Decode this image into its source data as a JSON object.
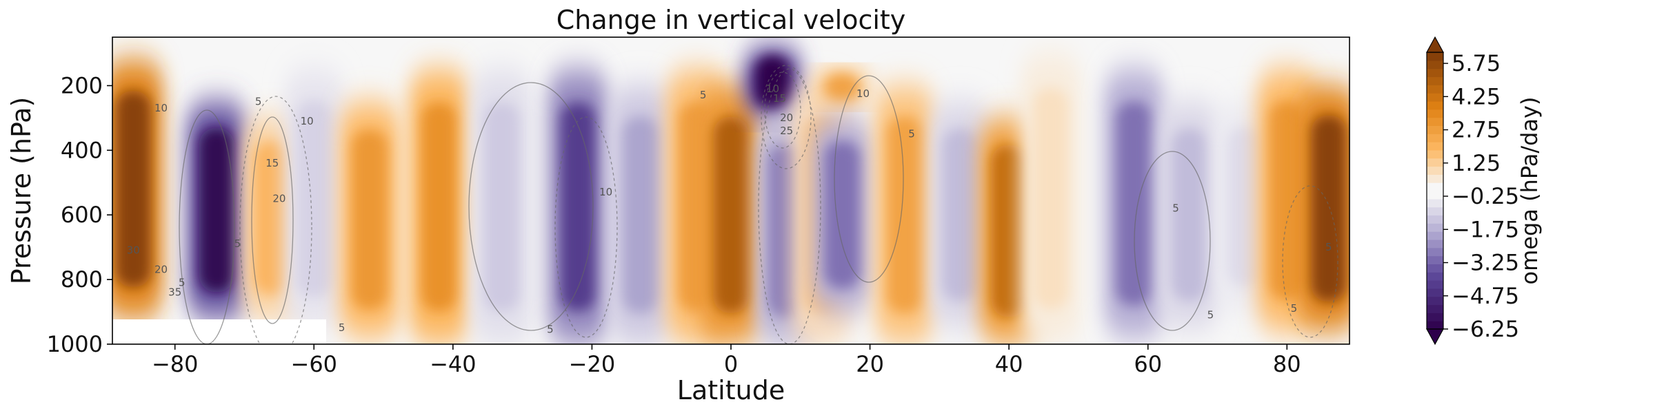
{
  "chart_data": {
    "type": "heatmap",
    "title": "Change in vertical velocity",
    "xlabel": "Latitude",
    "ylabel": "Pressure (hPa)",
    "xlim": [
      -89,
      89
    ],
    "ylim": [
      1000,
      50
    ],
    "x_ticks": [
      -80,
      -60,
      -40,
      -20,
      0,
      20,
      40,
      60,
      80
    ],
    "x_tick_labels": [
      "−80",
      "−60",
      "−40",
      "−20",
      "0",
      "20",
      "40",
      "60",
      "80"
    ],
    "y_ticks": [
      200,
      400,
      600,
      800,
      1000
    ],
    "y_tick_labels": [
      "200",
      "400",
      "600",
      "800",
      "1000"
    ],
    "colorbar": {
      "label": "omega (hPa/day)",
      "colormap": "PuOr_r",
      "vmin": -6.25,
      "vmax": 6.25,
      "extend": "both",
      "ticks": [
        -6.25,
        -4.75,
        -3.25,
        -1.75,
        -0.25,
        1.25,
        2.75,
        4.25,
        5.75
      ],
      "tick_labels": [
        "−6.25",
        "−4.75",
        "−3.25",
        "−1.75",
        "−0.25",
        "1.25",
        "2.75",
        "4.25",
        "5.75"
      ]
    },
    "field_bands": [
      {
        "lat": -86,
        "value": 6.0,
        "p_top": 120,
        "p_bot": 920
      },
      {
        "lat": -74,
        "value": -6.0,
        "p_top": 250,
        "p_bot": 920
      },
      {
        "lat": -66,
        "value": 2.0,
        "p_top": 300,
        "p_bot": 920
      },
      {
        "lat": -60,
        "value": -1.0,
        "p_top": 150,
        "p_bot": 950
      },
      {
        "lat": -52,
        "value": 3.0,
        "p_top": 250,
        "p_bot": 980
      },
      {
        "lat": -42,
        "value": 3.2,
        "p_top": 150,
        "p_bot": 1000
      },
      {
        "lat": -33,
        "value": -1.2,
        "p_top": 150,
        "p_bot": 1000
      },
      {
        "lat": -22,
        "value": -4.2,
        "p_top": 150,
        "p_bot": 1000
      },
      {
        "lat": -13,
        "value": -2.0,
        "p_top": 200,
        "p_bot": 1000
      },
      {
        "lat": -5,
        "value": 2.8,
        "p_top": 150,
        "p_bot": 1000
      },
      {
        "lat": 0,
        "value": 5.0,
        "p_top": 200,
        "p_bot": 1000
      },
      {
        "lat": 6,
        "value": -6.25,
        "p_top": 80,
        "p_bot": 300
      },
      {
        "lat": 8,
        "value": -2.8,
        "p_top": 300,
        "p_bot": 1000
      },
      {
        "lat": 13,
        "value": 1.5,
        "p_top": 200,
        "p_bot": 1000
      },
      {
        "lat": 16,
        "value": 2.6,
        "p_top": 150,
        "p_bot": 260
      },
      {
        "lat": 16,
        "value": -3.0,
        "p_top": 300,
        "p_bot": 900
      },
      {
        "lat": 25,
        "value": 2.6,
        "p_top": 200,
        "p_bot": 1000
      },
      {
        "lat": 33,
        "value": -1.5,
        "p_top": 250,
        "p_bot": 950
      },
      {
        "lat": 40,
        "value": 4.5,
        "p_top": 300,
        "p_bot": 1000
      },
      {
        "lat": 46,
        "value": 0.8,
        "p_top": 100,
        "p_bot": 1000
      },
      {
        "lat": 58,
        "value": -3.0,
        "p_top": 150,
        "p_bot": 980
      },
      {
        "lat": 66,
        "value": -1.5,
        "p_top": 250,
        "p_bot": 950
      },
      {
        "lat": 74,
        "value": -0.8,
        "p_top": 250,
        "p_bot": 900
      },
      {
        "lat": 80,
        "value": 3.0,
        "p_top": 150,
        "p_bot": 960
      },
      {
        "lat": 86,
        "value": 6.0,
        "p_top": 200,
        "p_bot": 960
      }
    ],
    "contour_labels": [
      {
        "lat": -82,
        "p": 280,
        "text": "10"
      },
      {
        "lat": -71,
        "p": 700,
        "text": "5"
      },
      {
        "lat": -68,
        "p": 260,
        "text": "5"
      },
      {
        "lat": -61,
        "p": 320,
        "text": "10"
      },
      {
        "lat": -66,
        "p": 450,
        "text": "15"
      },
      {
        "lat": -65,
        "p": 560,
        "text": "20"
      },
      {
        "lat": -86,
        "p": 720,
        "text": "30"
      },
      {
        "lat": -82,
        "p": 780,
        "text": "20"
      },
      {
        "lat": -80,
        "p": 850,
        "text": "35"
      },
      {
        "lat": -79,
        "p": 820,
        "text": "5"
      },
      {
        "lat": -56,
        "p": 960,
        "text": "5"
      },
      {
        "lat": -26,
        "p": 965,
        "text": "5"
      },
      {
        "lat": -18,
        "p": 540,
        "text": "10"
      },
      {
        "lat": -4,
        "p": 240,
        "text": "5"
      },
      {
        "lat": 6,
        "p": 220,
        "text": "10"
      },
      {
        "lat": 7,
        "p": 250,
        "text": "15"
      },
      {
        "lat": 8,
        "p": 310,
        "text": "20"
      },
      {
        "lat": 8,
        "p": 350,
        "text": "25"
      },
      {
        "lat": 19,
        "p": 235,
        "text": "10"
      },
      {
        "lat": 26,
        "p": 360,
        "text": "5"
      },
      {
        "lat": 64,
        "p": 590,
        "text": "5"
      },
      {
        "lat": 69,
        "p": 920,
        "text": "5"
      },
      {
        "lat": 81,
        "p": 900,
        "text": "5"
      },
      {
        "lat": 86,
        "p": 710,
        "text": "5"
      }
    ]
  }
}
